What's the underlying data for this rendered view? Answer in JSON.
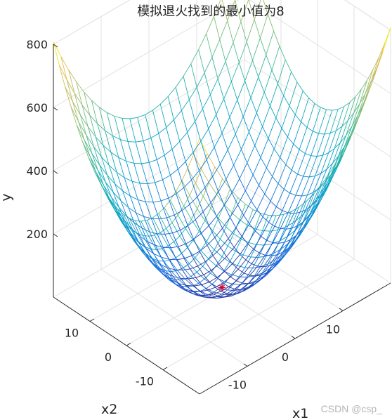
{
  "chart_data": {
    "type": "surface",
    "title": "模拟退火找到的最小值为8",
    "xlabel": "x1",
    "ylabel": "x2",
    "zlabel": "y",
    "function": "y = x1^2 + x2^2 + 8",
    "x1_range": [
      -20,
      20
    ],
    "x2_range": [
      -20,
      20
    ],
    "zlim": [
      0,
      800
    ],
    "x1_ticks": [
      -10,
      0,
      10
    ],
    "x2_ticks": [
      -10,
      0,
      10
    ],
    "z_ticks": [
      200,
      400,
      600,
      800
    ],
    "grid_steps": 25,
    "grid": true,
    "colormap": "parula",
    "marker": {
      "x1": 0,
      "x2": 0,
      "y": 8,
      "symbol": "*",
      "color": "#cc0033"
    },
    "view": {
      "azimuth": -37.5,
      "elevation": 30
    }
  },
  "watermark": "CSDN @csp_"
}
